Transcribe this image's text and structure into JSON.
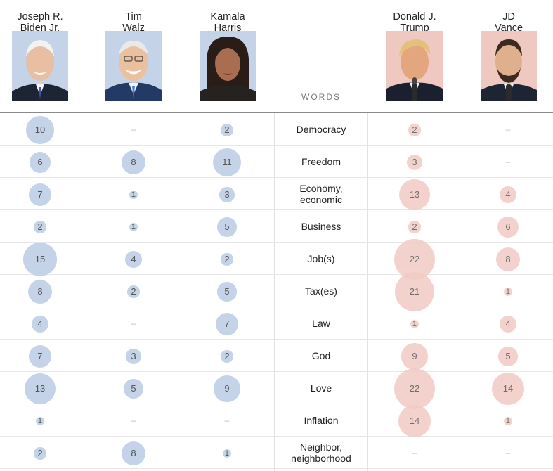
{
  "words_header": "WORDS",
  "colors": {
    "democrat": "#c4d3e8",
    "republican": "#f1cbc5"
  },
  "speakers": [
    {
      "id": "biden",
      "name": "Joseph R.\nBiden Jr.",
      "party": "dem"
    },
    {
      "id": "walz",
      "name": "Tim\nWalz",
      "party": "dem"
    },
    {
      "id": "harris",
      "name": "Kamala\nHarris",
      "party": "dem"
    },
    {
      "id": "trump",
      "name": "Donald J.\nTrump",
      "party": "rep"
    },
    {
      "id": "vance",
      "name": "JD\nVance",
      "party": "rep"
    }
  ],
  "chart_data": {
    "type": "table",
    "columns": [
      "Joseph R. Biden Jr.",
      "Tim Walz",
      "Kamala Harris",
      "Donald J. Trump",
      "JD Vance"
    ],
    "rows": [
      {
        "word": "Democracy",
        "values": [
          10,
          null,
          2,
          2,
          null
        ]
      },
      {
        "word": "Freedom",
        "values": [
          6,
          8,
          11,
          3,
          null
        ]
      },
      {
        "word": "Economy,\neconomic",
        "values": [
          7,
          1,
          3,
          13,
          4
        ]
      },
      {
        "word": "Business",
        "values": [
          2,
          1,
          5,
          2,
          6
        ]
      },
      {
        "word": "Job(s)",
        "values": [
          15,
          4,
          2,
          22,
          8
        ]
      },
      {
        "word": "Tax(es)",
        "values": [
          8,
          2,
          5,
          21,
          1
        ]
      },
      {
        "word": "Law",
        "values": [
          4,
          null,
          7,
          1,
          4
        ]
      },
      {
        "word": "God",
        "values": [
          7,
          3,
          2,
          9,
          5
        ]
      },
      {
        "word": "Love",
        "values": [
          13,
          5,
          9,
          22,
          14
        ]
      },
      {
        "word": "Inflation",
        "values": [
          1,
          null,
          null,
          14,
          1
        ]
      },
      {
        "word": "Neighbor,\nneighborhood",
        "values": [
          2,
          8,
          1,
          null,
          null
        ]
      }
    ]
  }
}
